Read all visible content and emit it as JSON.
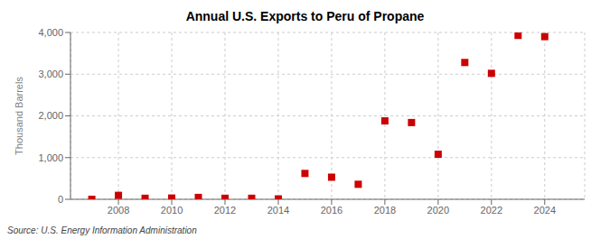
{
  "chart_data": {
    "type": "scatter",
    "title": "Annual U.S. Exports to Peru of Propane",
    "ylabel": "Thousand Barrels",
    "annotations": [
      "Source: U.S. Energy Information Administration"
    ],
    "x": [
      2007,
      2008,
      2009,
      2010,
      2011,
      2012,
      2013,
      2014,
      2015,
      2016,
      2017,
      2018,
      2019,
      2020,
      2021,
      2022,
      2023,
      2024
    ],
    "values": [
      0,
      95,
      25,
      30,
      45,
      25,
      25,
      10,
      620,
      530,
      360,
      1880,
      1840,
      1080,
      3280,
      3020,
      3930,
      3900
    ],
    "color": "#cc0000",
    "marker": "square",
    "xlim": [
      2006.2,
      2025.5
    ],
    "ylim": [
      0,
      4000
    ],
    "xticks": [
      2008,
      2010,
      2012,
      2014,
      2016,
      2018,
      2020,
      2022,
      2024
    ],
    "yticks": [
      0,
      {
        "value": 1000,
        "label": "1,000"
      },
      {
        "value": 2000,
        "label": "2,000"
      },
      {
        "value": 3000,
        "label": "3,000"
      },
      {
        "value": 4000,
        "label": "4,000"
      }
    ],
    "grid": true
  }
}
